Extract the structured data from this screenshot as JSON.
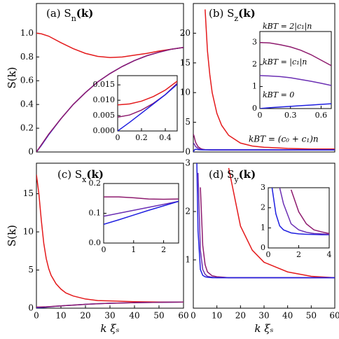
{
  "chart_data": [
    {
      "type": "line",
      "title": "(a) S",
      "title_sub": "n",
      "title_tail": "(k)",
      "ylabel": "S(k)",
      "xlim": [
        0,
        60
      ],
      "ylim": [
        0,
        1.25
      ],
      "yticks": [
        0,
        0.2,
        0.4,
        0.6,
        0.8,
        {
          "value": 1.0,
          "label": "1.0"
        }
      ],
      "x": [
        0,
        2,
        5,
        10,
        15,
        20,
        25,
        30,
        35,
        40,
        45,
        50,
        55,
        60
      ],
      "series": [
        {
          "name": "red",
          "color": "#e41a1c",
          "values": [
            1.0,
            0.995,
            0.975,
            0.92,
            0.87,
            0.83,
            0.805,
            0.795,
            0.8,
            0.815,
            0.83,
            0.85,
            0.865,
            0.88
          ]
        },
        {
          "name": "blue",
          "color": "#1f1fe0",
          "values": [
            0,
            0.055,
            0.145,
            0.28,
            0.4,
            0.5,
            0.59,
            0.66,
            0.72,
            0.77,
            0.81,
            0.84,
            0.865,
            0.88
          ]
        },
        {
          "name": "purple",
          "color": "#8e1b6e",
          "values": [
            0,
            0.06,
            0.15,
            0.28,
            0.4,
            0.5,
            0.59,
            0.66,
            0.72,
            0.77,
            0.81,
            0.84,
            0.865,
            0.88
          ]
        }
      ],
      "inset": {
        "xlim": [
          0,
          0.5
        ],
        "ylim": [
          0,
          0.018
        ],
        "xticks": [
          0,
          0.2,
          0.4
        ],
        "yticks": [
          {
            "value": 0,
            "label": "0.000"
          },
          {
            "value": 0.005,
            "label": "0.005"
          },
          {
            "value": 0.01,
            "label": "0.010"
          },
          {
            "value": 0.015,
            "label": "0.015"
          }
        ],
        "x": [
          0,
          0.1,
          0.2,
          0.3,
          0.4,
          0.5
        ],
        "series": [
          {
            "name": "red",
            "color": "#e41a1c",
            "values": [
              0.0085,
              0.0088,
              0.0097,
              0.0112,
              0.0133,
              0.0162
            ]
          },
          {
            "name": "purple",
            "color": "#8e1b6e",
            "values": [
              0.0045,
              0.0052,
              0.0068,
              0.009,
              0.0118,
              0.0155
            ]
          },
          {
            "name": "blue",
            "color": "#1f1fe0",
            "values": [
              0,
              0.0028,
              0.0058,
              0.0088,
              0.0118,
              0.0152
            ]
          }
        ]
      }
    },
    {
      "type": "line",
      "title": "(b) S",
      "title_sub": "z",
      "title_tail": "(k)",
      "xlim": [
        0,
        60
      ],
      "ylim": [
        0,
        25
      ],
      "yticks": [
        0,
        5,
        10,
        15,
        20
      ],
      "x": [
        0,
        0.3,
        0.6,
        1,
        2,
        3,
        4,
        5,
        6,
        7,
        8,
        10,
        12,
        15,
        20,
        25,
        30,
        40,
        50,
        60
      ],
      "series": [
        {
          "name": "red",
          "color": "#e41a1c",
          "values": [
            null,
            null,
            null,
            null,
            null,
            null,
            null,
            24,
            17,
            13,
            10,
            6.5,
            4.5,
            2.8,
            1.5,
            1.0,
            0.8,
            0.6,
            0.5,
            0.5
          ]
        },
        {
          "name": "purple",
          "color": "#8e1b6e",
          "values": [
            3.0,
            2.7,
            2.2,
            1.6,
            0.9,
            0.6,
            0.45,
            0.4,
            0.38,
            0.37,
            0.36,
            0.35,
            0.35,
            0.35,
            0.35,
            0.35,
            0.35,
            0.35,
            0.35,
            0.35
          ]
        },
        {
          "name": "violet",
          "color": "#6b2fb3",
          "values": [
            1.5,
            1.4,
            1.2,
            0.9,
            0.6,
            0.45,
            0.4,
            0.38,
            0.37,
            0.36,
            0.35,
            0.35,
            0.35,
            0.35,
            0.35,
            0.35,
            0.35,
            0.35,
            0.35,
            0.35
          ]
        },
        {
          "name": "blue",
          "color": "#1f1fe0",
          "values": [
            0,
            0.25,
            0.4,
            0.45,
            0.4,
            0.37,
            0.35,
            0.35,
            0.35,
            0.35,
            0.35,
            0.35,
            0.35,
            0.35,
            0.35,
            0.35,
            0.35,
            0.35,
            0.35,
            0.35
          ]
        }
      ],
      "annotations": [
        {
          "text": "kBT = (c₀ + c₁)n",
          "color": "#e41a1c"
        }
      ],
      "inset": {
        "xlim": [
          0,
          0.7
        ],
        "ylim": [
          0,
          3.5
        ],
        "xticks": [
          0,
          0.3,
          0.6
        ],
        "yticks": [
          0,
          1,
          2,
          3
        ],
        "x": [
          0,
          0.1,
          0.2,
          0.3,
          0.4,
          0.5,
          0.6,
          0.7
        ],
        "series": [
          {
            "name": "purple",
            "color": "#8e1b6e",
            "values": [
              3.0,
              2.98,
              2.9,
              2.8,
              2.65,
              2.45,
              2.2,
              1.95
            ]
          },
          {
            "name": "violet",
            "color": "#6b2fb3",
            "values": [
              1.5,
              1.48,
              1.45,
              1.4,
              1.32,
              1.24,
              1.15,
              1.05
            ]
          },
          {
            "name": "blue",
            "color": "#1f1fe0",
            "values": [
              0,
              0.04,
              0.07,
              0.1,
              0.13,
              0.16,
              0.19,
              0.22
            ]
          }
        ],
        "annotations": [
          {
            "text": "kBT = 2|c₁|n",
            "color": "#8e1b6e"
          },
          {
            "text": "kBT = |c₁|n",
            "color": "#6b2fb3"
          },
          {
            "text": "kBT = 0",
            "color": "#1f1fe0"
          }
        ]
      }
    },
    {
      "type": "line",
      "title": "(c) S",
      "title_sub": "x",
      "title_tail": "(k)",
      "ylabel": "S(k)",
      "xlabel": "k ξₛ",
      "xlim": [
        0,
        60
      ],
      "ylim": [
        0,
        19
      ],
      "xticks": [
        0,
        10,
        20,
        30,
        40,
        50,
        60
      ],
      "yticks": [
        0,
        5,
        10,
        15
      ],
      "x": [
        0,
        1,
        2,
        3,
        4,
        5,
        6,
        8,
        10,
        12,
        15,
        20,
        25,
        30,
        40,
        50,
        60
      ],
      "series": [
        {
          "name": "red",
          "color": "#e41a1c",
          "values": [
            17.5,
            15,
            11.5,
            8.5,
            6.5,
            5.2,
            4.3,
            3.2,
            2.5,
            2.0,
            1.6,
            1.2,
            1.0,
            0.95,
            0.85,
            0.8,
            0.8
          ]
        },
        {
          "name": "blue",
          "color": "#1f1fe0",
          "values": [
            0.065,
            0.08,
            0.1,
            0.12,
            0.14,
            0.17,
            0.2,
            0.25,
            0.3,
            0.34,
            0.4,
            0.5,
            0.58,
            0.64,
            0.72,
            0.77,
            0.8
          ]
        },
        {
          "name": "purple",
          "color": "#8e1b6e",
          "values": [
            0.15,
            0.15,
            0.16,
            0.17,
            0.18,
            0.2,
            0.22,
            0.26,
            0.3,
            0.34,
            0.4,
            0.5,
            0.58,
            0.64,
            0.72,
            0.77,
            0.8
          ]
        }
      ],
      "inset": {
        "xlim": [
          0,
          2.5
        ],
        "ylim": [
          0,
          0.2
        ],
        "xticks": [
          0,
          1,
          2
        ],
        "yticks": [
          {
            "value": 0,
            "label": "0.0"
          },
          0.1,
          0.2
        ],
        "x": [
          0,
          0.5,
          1,
          1.5,
          2,
          2.5
        ],
        "series": [
          {
            "name": "purple",
            "color": "#8e1b6e",
            "values": [
              0.155,
              0.155,
              0.152,
              0.148,
              0.147,
              0.148
            ]
          },
          {
            "name": "violet",
            "color": "#6b2fb3",
            "values": [
              0.09,
              0.1,
              0.11,
              0.12,
              0.13,
              0.14
            ]
          },
          {
            "name": "blue",
            "color": "#1f1fe0",
            "values": [
              0.063,
              0.078,
              0.094,
              0.11,
              0.125,
              0.14
            ]
          }
        ]
      }
    },
    {
      "type": "line",
      "title": "(d) S",
      "title_sub": "y",
      "title_tail": "(k)",
      "xlabel": "k ξₛ",
      "xlim": [
        0,
        60
      ],
      "ylim": [
        0,
        3
      ],
      "xticks": [
        0,
        10,
        20,
        30,
        40,
        50,
        60
      ],
      "yticks": [
        1,
        2,
        3
      ],
      "x": [
        0,
        0.5,
        1,
        1.5,
        2,
        3,
        4,
        5,
        6,
        8,
        10,
        13,
        15,
        20,
        25,
        30,
        40,
        50,
        60
      ],
      "series": [
        {
          "name": "red",
          "color": "#e41a1c",
          "values": [
            null,
            null,
            null,
            null,
            null,
            null,
            null,
            null,
            null,
            null,
            null,
            null,
            2.9,
            1.7,
            1.2,
            0.95,
            0.75,
            0.66,
            0.63
          ]
        },
        {
          "name": "purple",
          "color": "#8e1b6e",
          "values": [
            null,
            null,
            null,
            null,
            null,
            2.5,
            1.3,
            0.9,
            0.75,
            0.67,
            0.65,
            0.64,
            0.63,
            0.63,
            0.63,
            0.63,
            0.63,
            0.63,
            0.63
          ]
        },
        {
          "name": "violet",
          "color": "#6b2fb3",
          "values": [
            null,
            null,
            null,
            null,
            2.8,
            1.2,
            0.8,
            0.7,
            0.66,
            0.64,
            0.63,
            0.63,
            0.63,
            0.63,
            0.63,
            0.63,
            0.63,
            0.63,
            0.63
          ]
        },
        {
          "name": "blue",
          "color": "#1f1fe0",
          "values": [
            null,
            null,
            null,
            3.0,
            1.6,
            0.8,
            0.68,
            0.65,
            0.64,
            0.63,
            0.63,
            0.63,
            0.63,
            0.63,
            0.63,
            0.63,
            0.63,
            0.63,
            0.63
          ]
        }
      ],
      "inset": {
        "xlim": [
          0,
          4
        ],
        "ylim": [
          0,
          3
        ],
        "xticks": [
          0,
          2,
          4
        ],
        "yticks": [
          0,
          1,
          2,
          3
        ],
        "x": [
          0,
          0.25,
          0.5,
          0.75,
          1,
          1.5,
          2,
          2.5,
          3,
          3.5,
          4
        ],
        "series": [
          {
            "name": "blue",
            "color": "#1f1fe0",
            "values": [
              null,
              3.0,
              1.7,
              1.1,
              0.9,
              0.75,
              0.7,
              0.68,
              0.67,
              0.66,
              0.66
            ]
          },
          {
            "name": "violet",
            "color": "#6b2fb3",
            "values": [
              null,
              null,
              null,
              3.0,
              2.2,
              1.2,
              0.9,
              0.78,
              0.72,
              0.7,
              0.68
            ]
          },
          {
            "name": "purple",
            "color": "#8e1b6e",
            "values": [
              null,
              null,
              null,
              null,
              null,
              2.9,
              1.8,
              1.2,
              0.9,
              0.8,
              0.72
            ]
          }
        ]
      }
    }
  ]
}
